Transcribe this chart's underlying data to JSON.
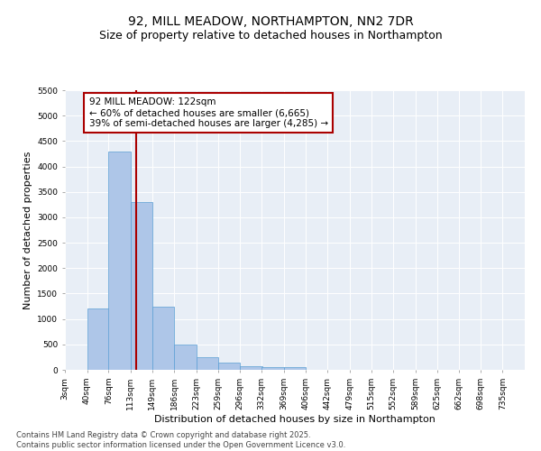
{
  "title": "92, MILL MEADOW, NORTHAMPTON, NN2 7DR",
  "subtitle": "Size of property relative to detached houses in Northampton",
  "xlabel": "Distribution of detached houses by size in Northampton",
  "ylabel": "Number of detached properties",
  "categories": [
    "3sqm",
    "40sqm",
    "76sqm",
    "113sqm",
    "149sqm",
    "186sqm",
    "223sqm",
    "259sqm",
    "296sqm",
    "332sqm",
    "369sqm",
    "406sqm",
    "442sqm",
    "479sqm",
    "515sqm",
    "552sqm",
    "589sqm",
    "625sqm",
    "662sqm",
    "698sqm",
    "735sqm"
  ],
  "bin_edges": [
    3,
    40,
    76,
    113,
    149,
    186,
    223,
    259,
    296,
    332,
    369,
    406,
    442,
    479,
    515,
    552,
    589,
    625,
    662,
    698,
    735
  ],
  "bar_values": [
    0,
    1200,
    4300,
    3300,
    1250,
    500,
    250,
    150,
    75,
    50,
    50,
    0,
    0,
    0,
    0,
    0,
    0,
    0,
    0,
    0
  ],
  "bar_color": "#aec6e8",
  "bar_edge_color": "#5a9fd4",
  "vline_x": 122,
  "vline_color": "#aa0000",
  "annotation_text": "92 MILL MEADOW: 122sqm\n← 60% of detached houses are smaller (6,665)\n39% of semi-detached houses are larger (4,285) →",
  "annotation_box_color": "#ffffff",
  "annotation_box_edge": "#aa0000",
  "ylim": [
    0,
    5500
  ],
  "yticks": [
    0,
    500,
    1000,
    1500,
    2000,
    2500,
    3000,
    3500,
    4000,
    4500,
    5000,
    5500
  ],
  "bg_color": "#e8eef6",
  "footer_line1": "Contains HM Land Registry data © Crown copyright and database right 2025.",
  "footer_line2": "Contains public sector information licensed under the Open Government Licence v3.0.",
  "title_fontsize": 10,
  "subtitle_fontsize": 9,
  "axis_label_fontsize": 8,
  "tick_fontsize": 6.5,
  "annotation_fontsize": 7.5,
  "footer_fontsize": 6
}
